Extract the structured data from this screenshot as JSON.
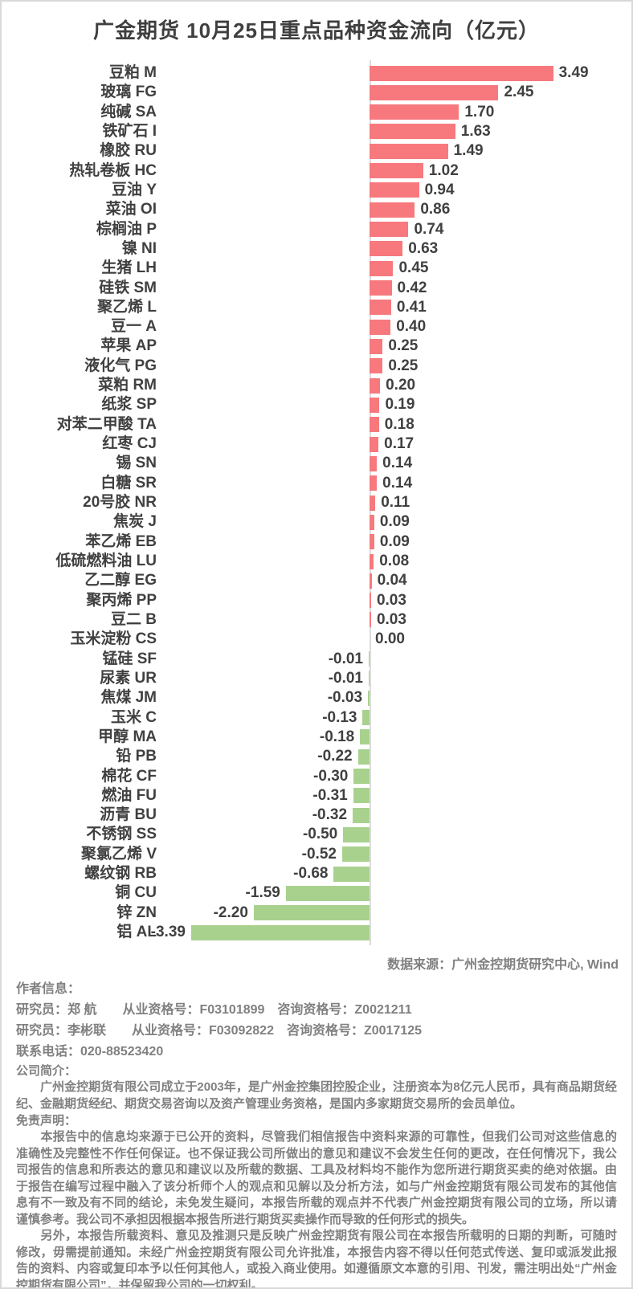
{
  "title": "广金期货 10月25日重点品种资金流向（亿元）",
  "colors": {
    "positive_bar": "#F7797D",
    "negative_bar": "#A9D18E",
    "axis_line": "#DCDCDC",
    "chart_text": "#404040",
    "footer_text": "#808080",
    "page_border": "#D9D9D9"
  },
  "chart_data": {
    "type": "bar",
    "orientation": "horizontal",
    "title": "广金期货 10月25日重点品种资金流向（亿元）",
    "unit": "亿元",
    "xlabel": "",
    "ylabel": "",
    "xlim": [
      -3.39,
      3.49
    ],
    "grid": false,
    "value_labels": true,
    "categories": [
      "豆粕 M",
      "玻璃 FG",
      "纯碱 SA",
      "铁矿石 I",
      "橡胶 RU",
      "热轧卷板 HC",
      "豆油 Y",
      "菜油 OI",
      "棕榈油 P",
      "镍 NI",
      "生猪 LH",
      "硅铁 SM",
      "聚乙烯 L",
      "豆一 A",
      "苹果 AP",
      "液化气 PG",
      "菜粕 RM",
      "纸浆 SP",
      "对苯二甲酸 TA",
      "红枣 CJ",
      "锡 SN",
      "白糖 SR",
      "20号胶 NR",
      "焦炭 J",
      "苯乙烯 EB",
      "低硫燃料油 LU",
      "乙二醇 EG",
      "聚丙烯 PP",
      "豆二 B",
      "玉米淀粉 CS",
      "锰硅 SF",
      "尿素 UR",
      "焦煤 JM",
      "玉米 C",
      "甲醇 MA",
      "铅 PB",
      "棉花 CF",
      "燃油 FU",
      "沥青 BU",
      "不锈钢 SS",
      "聚氯乙烯 V",
      "螺纹钢 RB",
      "铜 CU",
      "锌 ZN",
      "铝 AL"
    ],
    "values": [
      3.49,
      2.45,
      1.7,
      1.63,
      1.49,
      1.02,
      0.94,
      0.86,
      0.74,
      0.63,
      0.45,
      0.42,
      0.41,
      0.4,
      0.25,
      0.25,
      0.2,
      0.19,
      0.18,
      0.17,
      0.14,
      0.14,
      0.11,
      0.09,
      0.09,
      0.08,
      0.04,
      0.03,
      0.03,
      0.0,
      -0.01,
      -0.01,
      -0.03,
      -0.13,
      -0.18,
      -0.22,
      -0.3,
      -0.31,
      -0.32,
      -0.5,
      -0.52,
      -0.68,
      -1.59,
      -2.2,
      -3.39
    ]
  },
  "footer": {
    "data_source": "数据来源：广州金控期货研究中心, Wind",
    "lines": [
      {
        "name": "author-info-heading",
        "style": "author",
        "text": "作者信息："
      },
      {
        "name": "researcher-line-1",
        "style": "author",
        "text": "研究员：郑 航　　从业资格号：F03101899　咨询资格号：Z0021211"
      },
      {
        "name": "researcher-line-2",
        "style": "author",
        "text": "研究员：李彬联　　从业资格号：F03092822　咨询资格号：Z0017125"
      },
      {
        "name": "contact-phone",
        "style": "author",
        "text": "联系电话：020-88523420"
      },
      {
        "name": "company-intro-heading",
        "style": "heading",
        "text": "公司简介："
      },
      {
        "name": "company-intro-paragraph",
        "style": "para",
        "text": "　　广州金控期货有限公司成立于2003年，是广州金控集团控股企业，注册资本为8亿元人民币，具有商品期货经纪、金融期货经纪、期货交易咨询以及资产管理业务资格，是国内多家期货交易所的会员单位。"
      },
      {
        "name": "disclaimer-heading",
        "style": "heading",
        "text": "免责声明："
      },
      {
        "name": "disclaimer-paragraph-1",
        "style": "para",
        "text": "　　本报告中的信息均来源于已公开的资料，尽管我们相信报告中资料来源的可靠性，但我们公司对这些信息的准确性及完整性不作任何保证。也不保证我公司所做出的意见和建议不会发生任何的更改，在任何情况下，我公司报告的信息和所表达的意见和建议以及所载的数据、工具及材料均不能作为您所进行期货买卖的绝对依据。由于报告在编写过程中融入了该分析师个人的观点和见解以及分析方法，如与广州金控期货有限公司发布的其他信息有不一致及有不同的结论，未免发生疑问，本报告所载的观点并不代表广州金控期货有限公司的立场，所以请谨慎参考。我公司不承担因根据本报告所进行期货买卖操作而导致的任何形式的损失。"
      },
      {
        "name": "disclaimer-paragraph-2",
        "style": "para",
        "text": "　　另外，本报告所载资料、意见及推测只是反映广州金控期货有限公司在本报告所载明的日期的判断，可随时修改，毋需提前通知。未经广州金控期货有限公司允许批准，本报告内容不得以任何范式传送、复印或派发此报告的资料、内容或复印本予以任何其他人，或投入商业使用。如遵循原文本意的引用、刊发，需注明出处“广州金控期货有限公司”，并保留我公司的一切权利。"
      }
    ]
  }
}
